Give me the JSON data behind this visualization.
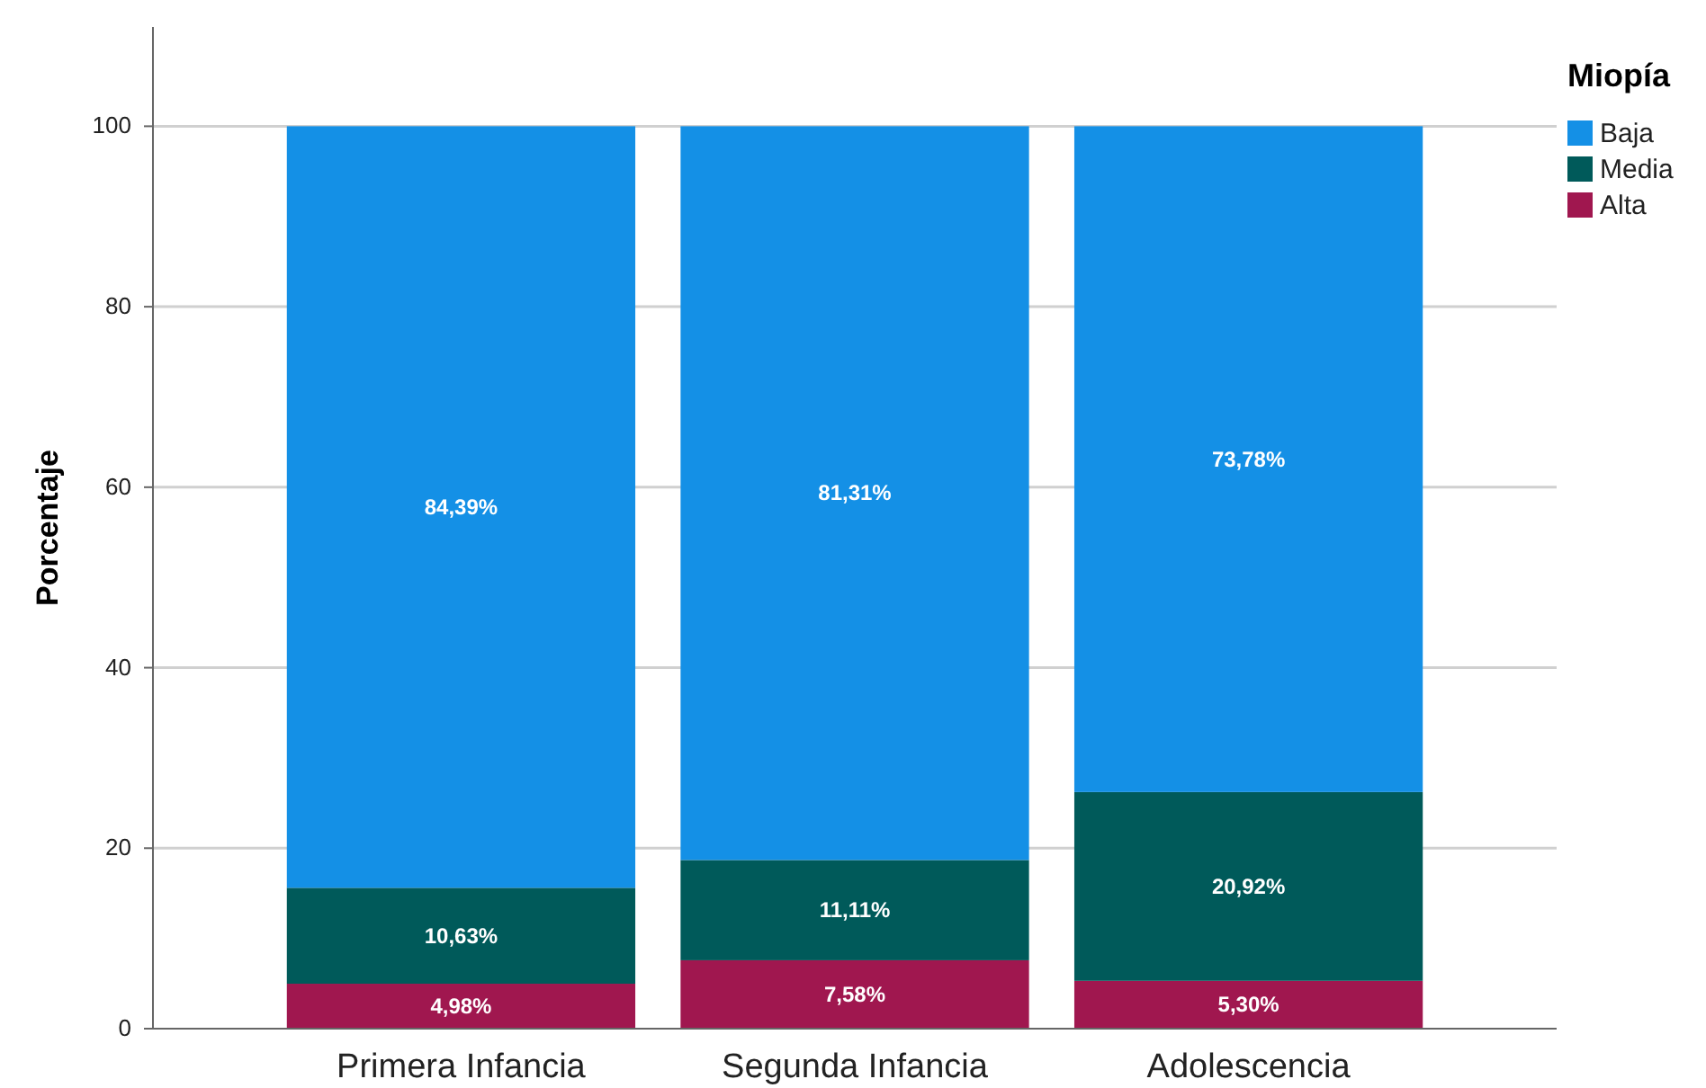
{
  "chart_data": {
    "type": "bar",
    "stacked": true,
    "ylabel": "Porcentaje",
    "legend_title": "Miopía",
    "legend": "top right",
    "categories": [
      "Primera Infancia",
      "Segunda Infancia",
      "Adolescencia"
    ],
    "series": [
      {
        "name": "Alta",
        "color": "#a0174f",
        "values": [
          4.98,
          7.58,
          5.3
        ],
        "value_labels": [
          "4,98%",
          "7,58%",
          "5,30%"
        ]
      },
      {
        "name": "Media",
        "color": "#005a5a",
        "values": [
          10.63,
          11.11,
          20.92
        ],
        "value_labels": [
          "10,63%",
          "11,11%",
          "20,92%"
        ]
      },
      {
        "name": "Baja",
        "color": "#1490e6",
        "values": [
          84.39,
          81.31,
          73.78
        ],
        "value_labels": [
          "84,39%",
          "81,31%",
          "73,78%"
        ]
      }
    ],
    "ylim": [
      0,
      111
    ],
    "yticks": [
      0,
      20,
      40,
      60,
      80,
      100
    ],
    "grid": "y"
  }
}
